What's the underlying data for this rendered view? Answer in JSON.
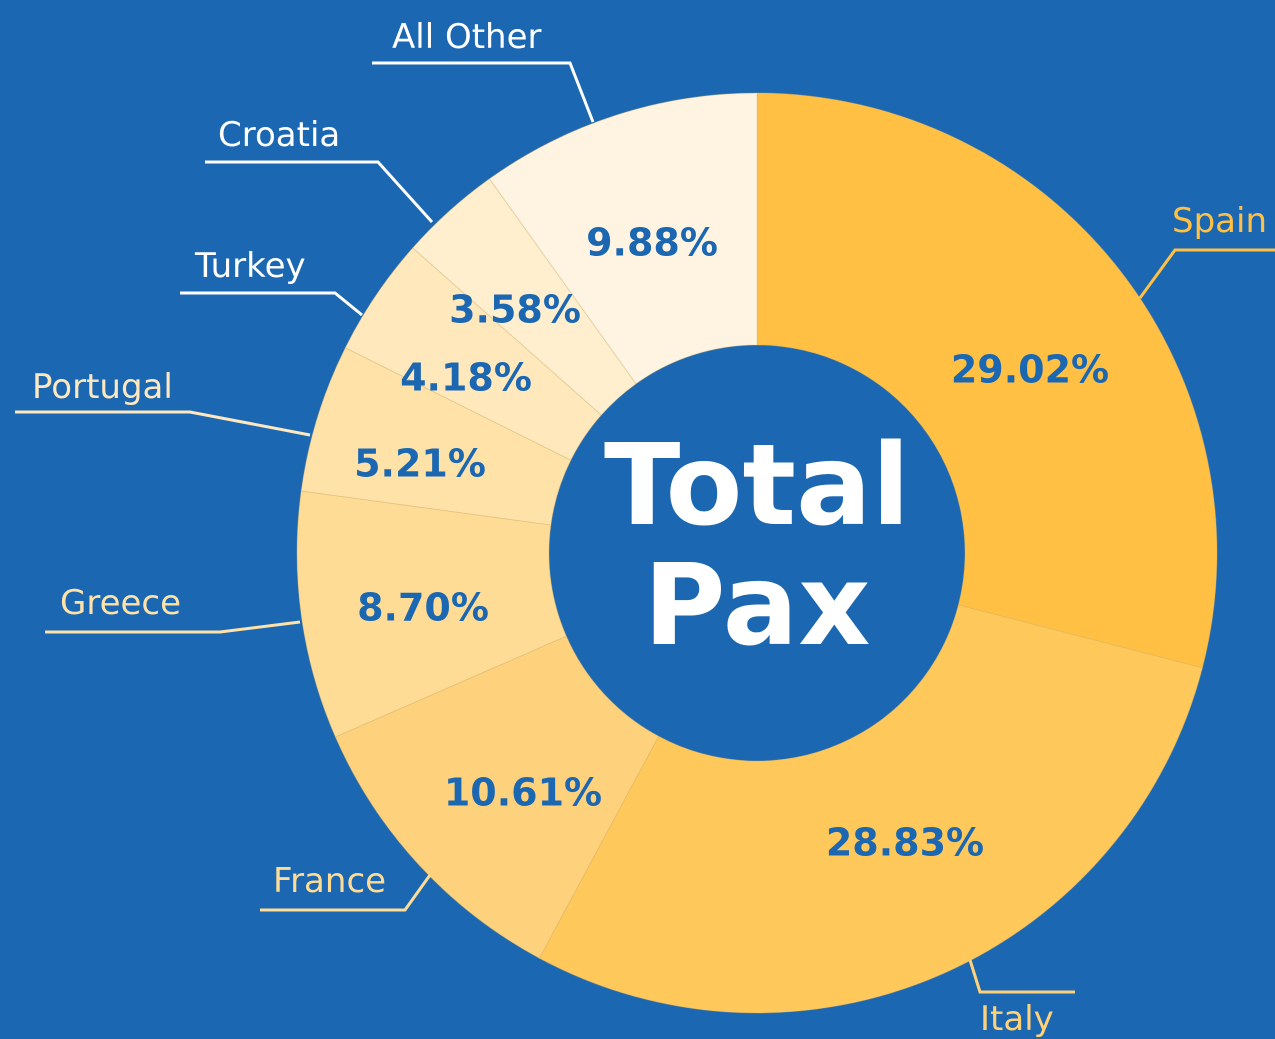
{
  "chart_data": {
    "type": "donut",
    "center_text": [
      "Total",
      "Pax"
    ],
    "categories": [
      "Spain",
      "Italy",
      "France",
      "Greece",
      "Portugal",
      "Turkey",
      "Croatia",
      "All Other"
    ],
    "values": [
      29.02,
      28.83,
      10.61,
      8.7,
      5.21,
      4.18,
      3.58,
      9.88
    ],
    "value_labels": [
      "29.02%",
      "28.83%",
      "10.61%",
      "8.70%",
      "5.21%",
      "4.18%",
      "3.58%",
      "9.88%"
    ],
    "colors": [
      "#ffc043",
      "#ffc85a",
      "#fed27c",
      "#fedc96",
      "#fee2a8",
      "#ffe8bc",
      "#ffefcf",
      "#fff4e2"
    ],
    "label_colors": [
      "#ffc043",
      "#ffd27a",
      "#fedc96",
      "#fee2a8",
      "#fee8c0",
      "#ffffff",
      "#ffffff",
      "#ffffff"
    ]
  }
}
